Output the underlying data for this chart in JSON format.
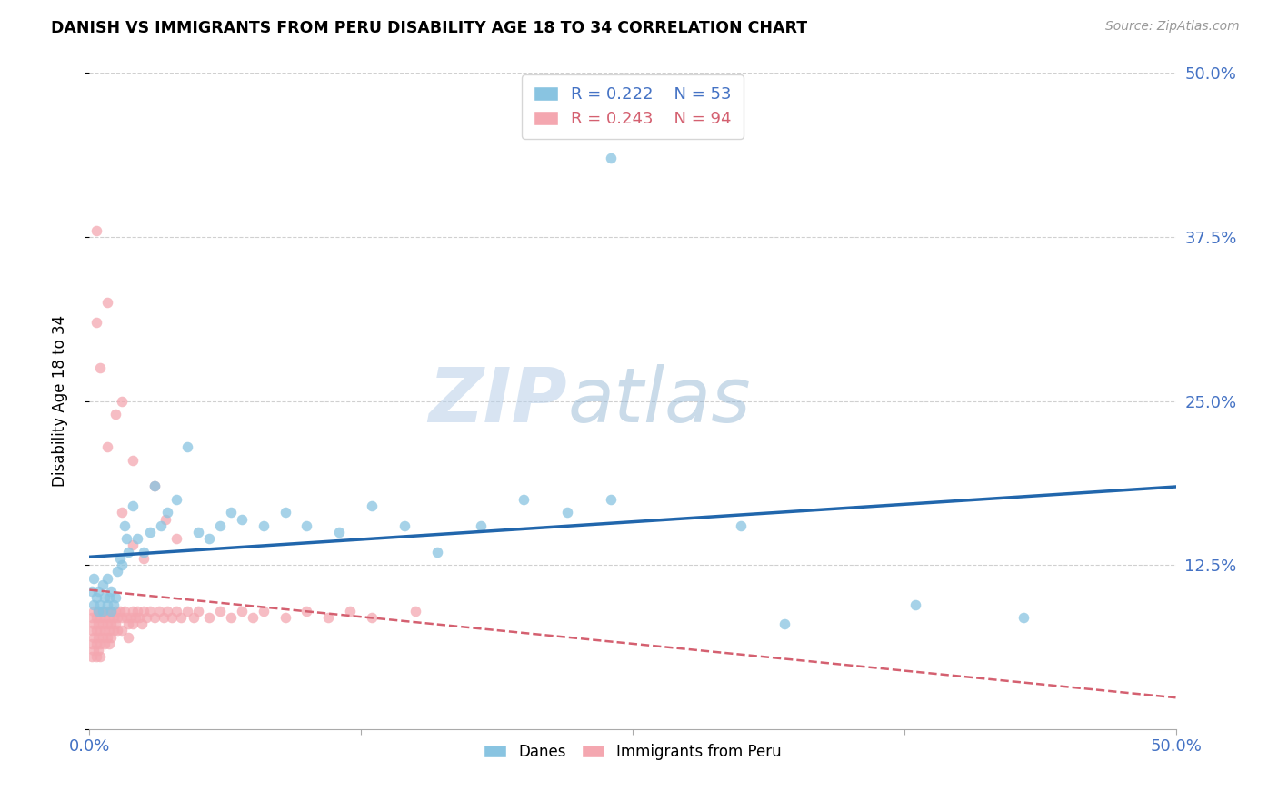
{
  "title": "DANISH VS IMMIGRANTS FROM PERU DISABILITY AGE 18 TO 34 CORRELATION CHART",
  "source": "Source: ZipAtlas.com",
  "ylabel": "Disability Age 18 to 34",
  "xlim": [
    0.0,
    0.5
  ],
  "ylim": [
    0.0,
    0.5
  ],
  "danes_color": "#89c4e1",
  "peru_color": "#f4a7b0",
  "danes_line_color": "#2166ac",
  "peru_line_color": "#d46070",
  "legend_dane_R": "R = 0.222",
  "legend_dane_N": "N = 53",
  "legend_peru_R": "R = 0.243",
  "legend_peru_N": "N = 94",
  "watermark_zip": "ZIP",
  "watermark_atlas": "atlas",
  "tick_color": "#4472c4",
  "danes_x": [
    0.001,
    0.002,
    0.002,
    0.003,
    0.004,
    0.004,
    0.005,
    0.006,
    0.006,
    0.007,
    0.008,
    0.008,
    0.009,
    0.01,
    0.01,
    0.011,
    0.012,
    0.013,
    0.014,
    0.015,
    0.016,
    0.017,
    0.018,
    0.02,
    0.022,
    0.025,
    0.028,
    0.03,
    0.033,
    0.036,
    0.04,
    0.045,
    0.05,
    0.055,
    0.06,
    0.065,
    0.07,
    0.08,
    0.09,
    0.1,
    0.115,
    0.13,
    0.145,
    0.16,
    0.18,
    0.2,
    0.22,
    0.24,
    0.3,
    0.32,
    0.38,
    0.43,
    0.24
  ],
  "danes_y": [
    0.105,
    0.095,
    0.115,
    0.1,
    0.09,
    0.105,
    0.095,
    0.11,
    0.09,
    0.1,
    0.095,
    0.115,
    0.1,
    0.09,
    0.105,
    0.095,
    0.1,
    0.12,
    0.13,
    0.125,
    0.155,
    0.145,
    0.135,
    0.17,
    0.145,
    0.135,
    0.15,
    0.185,
    0.155,
    0.165,
    0.175,
    0.215,
    0.15,
    0.145,
    0.155,
    0.165,
    0.16,
    0.155,
    0.165,
    0.155,
    0.15,
    0.17,
    0.155,
    0.135,
    0.155,
    0.175,
    0.165,
    0.175,
    0.155,
    0.08,
    0.095,
    0.085,
    0.435
  ],
  "peru_x": [
    0.001,
    0.001,
    0.001,
    0.001,
    0.002,
    0.002,
    0.002,
    0.002,
    0.003,
    0.003,
    0.003,
    0.003,
    0.004,
    0.004,
    0.004,
    0.004,
    0.005,
    0.005,
    0.005,
    0.005,
    0.006,
    0.006,
    0.006,
    0.007,
    0.007,
    0.007,
    0.008,
    0.008,
    0.008,
    0.009,
    0.009,
    0.009,
    0.01,
    0.01,
    0.01,
    0.011,
    0.011,
    0.012,
    0.012,
    0.013,
    0.013,
    0.014,
    0.015,
    0.015,
    0.016,
    0.017,
    0.018,
    0.018,
    0.019,
    0.02,
    0.02,
    0.021,
    0.022,
    0.023,
    0.024,
    0.025,
    0.026,
    0.028,
    0.03,
    0.032,
    0.034,
    0.036,
    0.038,
    0.04,
    0.042,
    0.045,
    0.048,
    0.05,
    0.055,
    0.06,
    0.065,
    0.07,
    0.075,
    0.08,
    0.09,
    0.1,
    0.11,
    0.12,
    0.13,
    0.15,
    0.003,
    0.005,
    0.008,
    0.012,
    0.015,
    0.02,
    0.025,
    0.03,
    0.035,
    0.04,
    0.003,
    0.008,
    0.015,
    0.02
  ],
  "peru_y": [
    0.085,
    0.075,
    0.065,
    0.055,
    0.09,
    0.08,
    0.07,
    0.06,
    0.085,
    0.075,
    0.065,
    0.055,
    0.09,
    0.08,
    0.07,
    0.06,
    0.085,
    0.075,
    0.065,
    0.055,
    0.09,
    0.08,
    0.07,
    0.085,
    0.075,
    0.065,
    0.09,
    0.08,
    0.07,
    0.085,
    0.075,
    0.065,
    0.09,
    0.08,
    0.07,
    0.085,
    0.075,
    0.09,
    0.08,
    0.085,
    0.075,
    0.09,
    0.085,
    0.075,
    0.09,
    0.085,
    0.08,
    0.07,
    0.085,
    0.09,
    0.08,
    0.085,
    0.09,
    0.085,
    0.08,
    0.09,
    0.085,
    0.09,
    0.085,
    0.09,
    0.085,
    0.09,
    0.085,
    0.09,
    0.085,
    0.09,
    0.085,
    0.09,
    0.085,
    0.09,
    0.085,
    0.09,
    0.085,
    0.09,
    0.085,
    0.09,
    0.085,
    0.09,
    0.085,
    0.09,
    0.31,
    0.275,
    0.215,
    0.24,
    0.165,
    0.14,
    0.13,
    0.185,
    0.16,
    0.145,
    0.38,
    0.325,
    0.25,
    0.205
  ]
}
